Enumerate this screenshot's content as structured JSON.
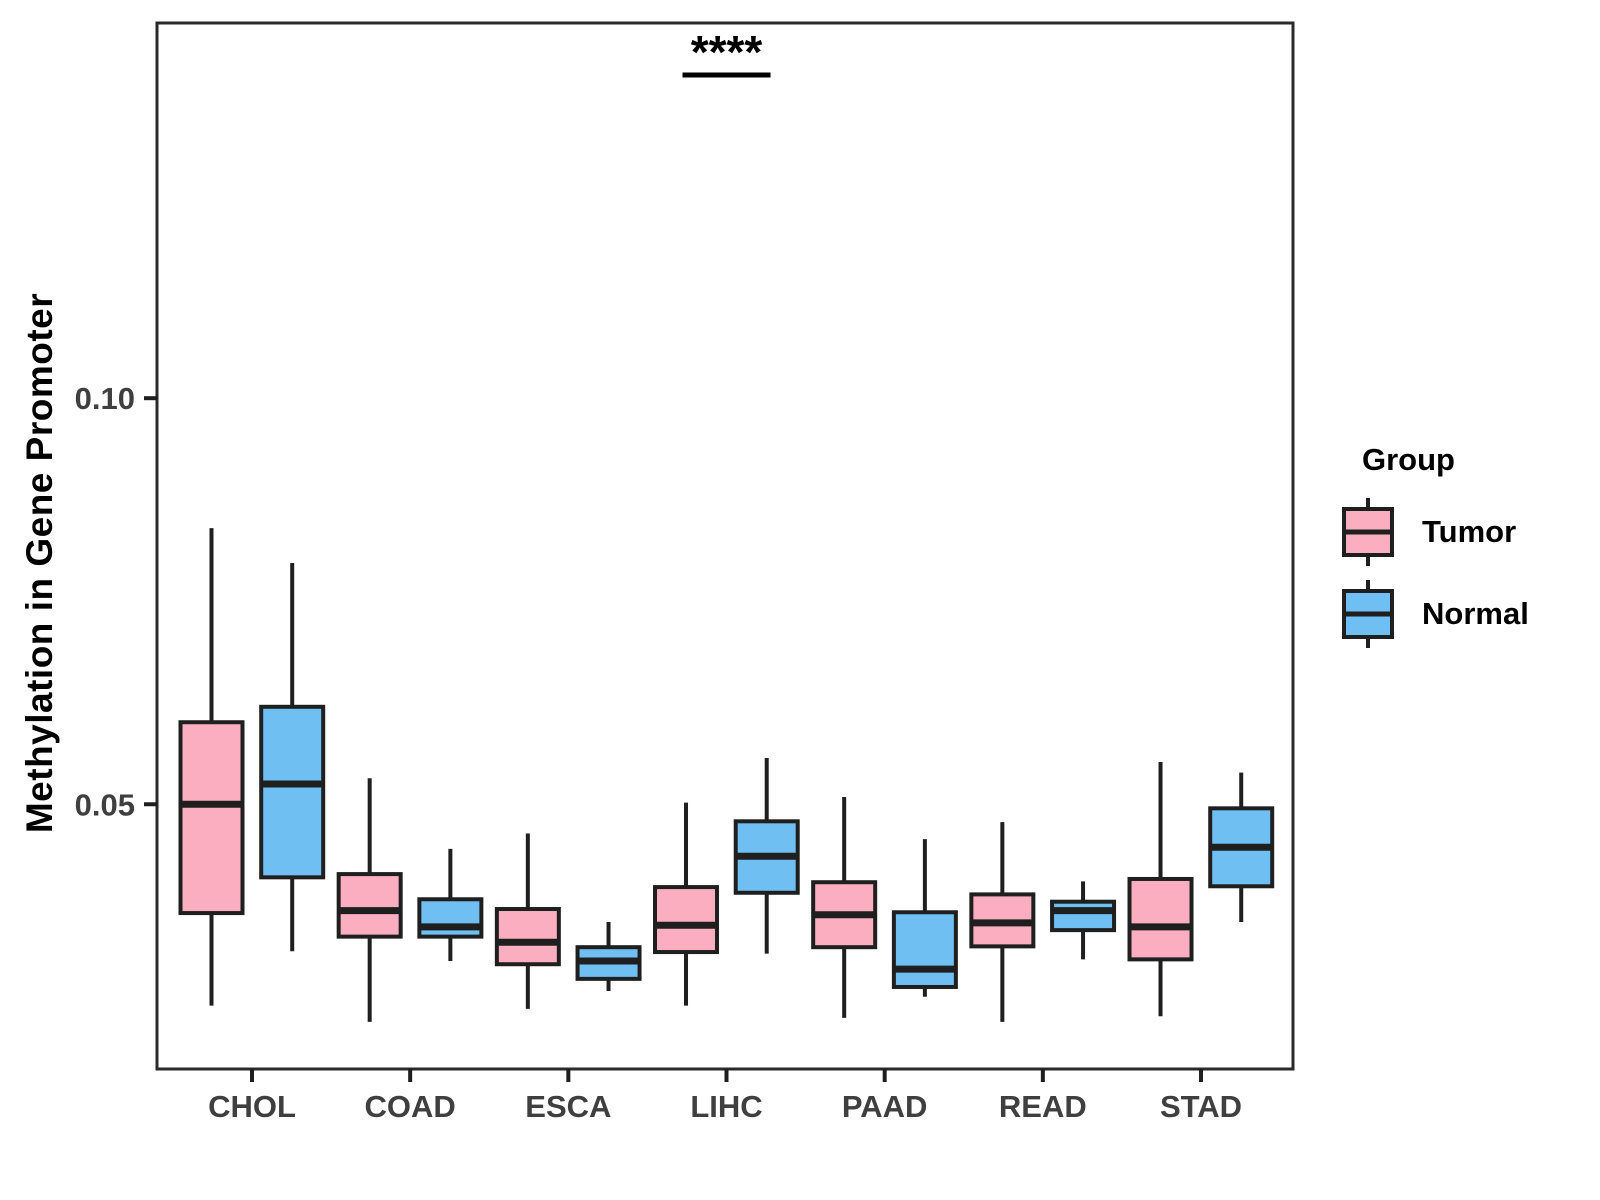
{
  "chart_data": {
    "type": "boxplot",
    "ylabel": "Methylation in Gene Promoter",
    "categories": [
      "CHOL",
      "COAD",
      "ESCA",
      "LIHC",
      "PAAD",
      "READ",
      "STAD"
    ],
    "ylim": [
      0.0174,
      0.1462
    ],
    "yticks": [
      {
        "value": 0.05,
        "label": "0.05"
      },
      {
        "value": 0.1,
        "label": "0.10"
      }
    ],
    "grid": false,
    "legend_position": "right",
    "series": [
      {
        "name": "Tumor",
        "color": "#FAAEC0",
        "boxes": [
          {
            "category": "CHOL",
            "min": 0.0252,
            "q1": 0.0366,
            "median": 0.05,
            "q3": 0.0601,
            "max": 0.084
          },
          {
            "category": "COAD",
            "min": 0.0232,
            "q1": 0.0337,
            "median": 0.0369,
            "q3": 0.0414,
            "max": 0.0532
          },
          {
            "category": "ESCA",
            "min": 0.0248,
            "q1": 0.0303,
            "median": 0.033,
            "q3": 0.0371,
            "max": 0.0464
          },
          {
            "category": "LIHC",
            "min": 0.0252,
            "q1": 0.0318,
            "median": 0.0351,
            "q3": 0.0398,
            "max": 0.0502
          },
          {
            "category": "PAAD",
            "min": 0.0237,
            "q1": 0.0324,
            "median": 0.0364,
            "q3": 0.0404,
            "max": 0.0509
          },
          {
            "category": "READ",
            "min": 0.0232,
            "q1": 0.0325,
            "median": 0.0354,
            "q3": 0.0389,
            "max": 0.0478
          },
          {
            "category": "STAD",
            "min": 0.0239,
            "q1": 0.0309,
            "median": 0.0349,
            "q3": 0.0408,
            "max": 0.0552
          }
        ]
      },
      {
        "name": "Normal",
        "color": "#6FBFF2",
        "boxes": [
          {
            "category": "CHOL",
            "min": 0.0319,
            "q1": 0.041,
            "median": 0.0525,
            "q3": 0.062,
            "max": 0.0797
          },
          {
            "category": "COAD",
            "min": 0.0307,
            "q1": 0.0337,
            "median": 0.0349,
            "q3": 0.0383,
            "max": 0.0445
          },
          {
            "category": "ESCA",
            "min": 0.027,
            "q1": 0.0285,
            "median": 0.0307,
            "q3": 0.0324,
            "max": 0.0355
          },
          {
            "category": "LIHC",
            "min": 0.0316,
            "q1": 0.0391,
            "median": 0.0436,
            "q3": 0.0479,
            "max": 0.0557
          },
          {
            "category": "PAAD",
            "min": 0.0263,
            "q1": 0.0275,
            "median": 0.0297,
            "q3": 0.0367,
            "max": 0.0457
          },
          {
            "category": "READ",
            "min": 0.0309,
            "q1": 0.0345,
            "median": 0.0369,
            "q3": 0.038,
            "max": 0.0405
          },
          {
            "category": "STAD",
            "min": 0.0355,
            "q1": 0.0399,
            "median": 0.0447,
            "q3": 0.0495,
            "max": 0.0539
          }
        ]
      }
    ],
    "annotation": {
      "text": "****",
      "category": "LIHC",
      "underlined": true
    },
    "legend": {
      "title": "Group",
      "entries": [
        {
          "label": "Tumor"
        },
        {
          "label": "Normal"
        }
      ]
    },
    "colors": {
      "tumor_fill": "#FAAEC0",
      "normal_fill": "#6FBFF2",
      "box_stroke": "#1F1F1F",
      "panel_border": "#2A2A2A",
      "axis_text": "#3F3F3F",
      "title_text": "#000000"
    }
  }
}
